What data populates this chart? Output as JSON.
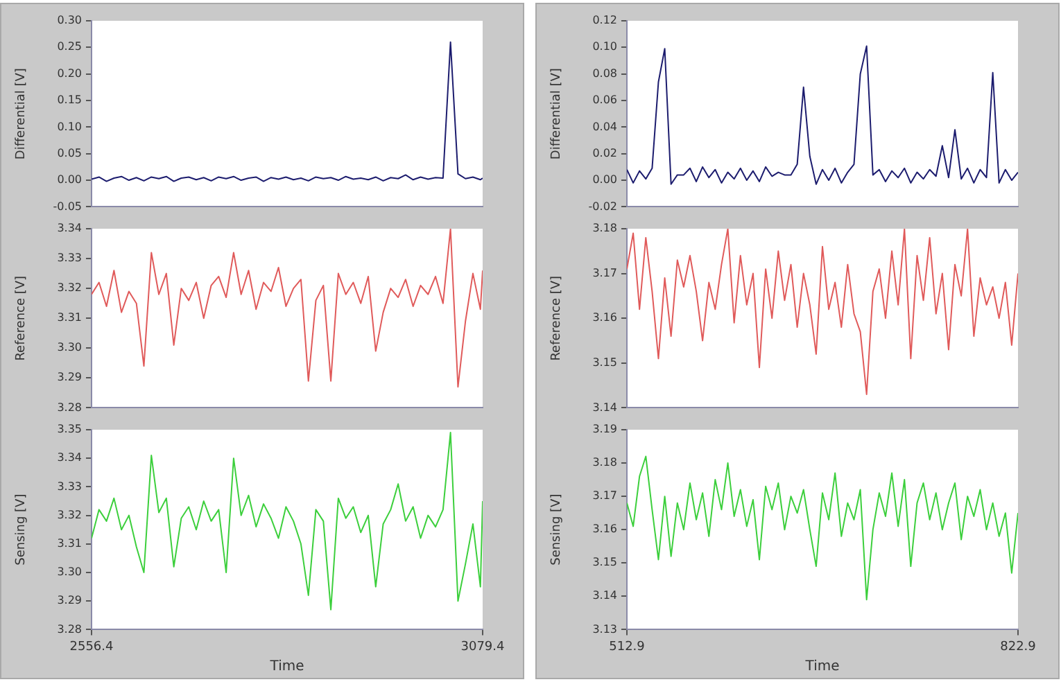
{
  "chart_data": [
    {
      "type": "line",
      "ylabel": "Differential [V]",
      "tick_labels": "y",
      "xlim": [
        2556.4,
        3079.4
      ],
      "ylim": [
        -0.05,
        0.3
      ],
      "yticks": [
        {
          "value": -0.05,
          "label": "-0.05"
        },
        {
          "value": 0,
          "label": "0.00"
        },
        {
          "value": 0.05,
          "label": "0.05"
        },
        {
          "value": 0.1,
          "label": "0.10"
        },
        {
          "value": 0.15,
          "label": "0.15"
        },
        {
          "value": 0.2,
          "label": "0.20"
        },
        {
          "value": 0.25,
          "label": "0.25"
        },
        {
          "value": 0.3,
          "label": "0.30"
        }
      ],
      "x": [
        2556.4,
        2566.4,
        2576.4,
        2586.4,
        2596.4,
        2606.4,
        2616.4,
        2626.4,
        2636.4,
        2646.4,
        2656.4,
        2666.4,
        2676.4,
        2686.4,
        2696.4,
        2706.4,
        2716.4,
        2726.4,
        2736.4,
        2746.4,
        2756.4,
        2766.4,
        2776.4,
        2786.4,
        2796.4,
        2806.4,
        2816.4,
        2826.4,
        2836.4,
        2846.4,
        2856.4,
        2866.4,
        2876.4,
        2886.4,
        2896.4,
        2906.4,
        2916.4,
        2926.4,
        2936.4,
        2946.4,
        2956.4,
        2966.4,
        2976.4,
        2986.4,
        2996.4,
        3006.4,
        3016.4,
        3026.4,
        3036.4,
        3046.4,
        3056.4,
        3066.4,
        3076.4,
        3079.4
      ],
      "series": [
        {
          "color": "#1c1c6e",
          "values": [
            0.002,
            0.006,
            -0.002,
            0.004,
            0.007,
            0.0,
            0.005,
            -0.001,
            0.006,
            0.003,
            0.007,
            -0.002,
            0.004,
            0.006,
            0.001,
            0.005,
            -0.001,
            0.006,
            0.003,
            0.007,
            0.0,
            0.004,
            0.006,
            -0.002,
            0.005,
            0.002,
            0.006,
            0.001,
            0.004,
            -0.001,
            0.006,
            0.003,
            0.005,
            0.0,
            0.007,
            0.002,
            0.004,
            0.001,
            0.006,
            -0.001,
            0.005,
            0.003,
            0.01,
            0.001,
            0.006,
            0.002,
            0.005,
            0.004,
            0.26,
            0.012,
            0.003,
            0.006,
            0.001,
            0.004
          ]
        }
      ]
    },
    {
      "type": "line",
      "ylabel": "Reference [V]",
      "tick_labels": "y",
      "xlim": [
        2556.4,
        3079.4
      ],
      "ylim": [
        3.28,
        3.34
      ],
      "yticks": [
        {
          "value": 3.28,
          "label": "3.28"
        },
        {
          "value": 3.29,
          "label": "3.29"
        },
        {
          "value": 3.3,
          "label": "3.30"
        },
        {
          "value": 3.31,
          "label": "3.31"
        },
        {
          "value": 3.32,
          "label": "3.32"
        },
        {
          "value": 3.33,
          "label": "3.33"
        },
        {
          "value": 3.34,
          "label": "3.34"
        }
      ],
      "x": [
        2556.4,
        2566.4,
        2576.4,
        2586.4,
        2596.4,
        2606.4,
        2616.4,
        2626.4,
        2636.4,
        2646.4,
        2656.4,
        2666.4,
        2676.4,
        2686.4,
        2696.4,
        2706.4,
        2716.4,
        2726.4,
        2736.4,
        2746.4,
        2756.4,
        2766.4,
        2776.4,
        2786.4,
        2796.4,
        2806.4,
        2816.4,
        2826.4,
        2836.4,
        2846.4,
        2856.4,
        2866.4,
        2876.4,
        2886.4,
        2896.4,
        2906.4,
        2916.4,
        2926.4,
        2936.4,
        2946.4,
        2956.4,
        2966.4,
        2976.4,
        2986.4,
        2996.4,
        3006.4,
        3016.4,
        3026.4,
        3036.4,
        3046.4,
        3056.4,
        3066.4,
        3076.4,
        3079.4
      ],
      "series": [
        {
          "color": "#e05a5a",
          "values": [
            3.318,
            3.322,
            3.314,
            3.326,
            3.312,
            3.319,
            3.315,
            3.294,
            3.332,
            3.318,
            3.325,
            3.301,
            3.32,
            3.316,
            3.322,
            3.31,
            3.321,
            3.324,
            3.317,
            3.332,
            3.318,
            3.326,
            3.313,
            3.322,
            3.319,
            3.327,
            3.314,
            3.32,
            3.323,
            3.289,
            3.316,
            3.321,
            3.289,
            3.325,
            3.318,
            3.322,
            3.315,
            3.324,
            3.299,
            3.312,
            3.32,
            3.317,
            3.323,
            3.314,
            3.321,
            3.318,
            3.324,
            3.315,
            3.34,
            3.287,
            3.309,
            3.325,
            3.313,
            3.326
          ]
        }
      ]
    },
    {
      "type": "line",
      "ylabel": "Sensing [V]",
      "xlabel": "Time",
      "xlim": [
        2556.4,
        3079.4
      ],
      "xticks": [
        2556.4,
        3079.4
      ],
      "ylim": [
        3.28,
        3.35
      ],
      "yticks": [
        {
          "value": 3.28,
          "label": "3.28"
        },
        {
          "value": 3.29,
          "label": "3.29"
        },
        {
          "value": 3.3,
          "label": "3.30"
        },
        {
          "value": 3.31,
          "label": "3.31"
        },
        {
          "value": 3.32,
          "label": "3.32"
        },
        {
          "value": 3.33,
          "label": "3.33"
        },
        {
          "value": 3.34,
          "label": "3.34"
        },
        {
          "value": 3.35,
          "label": "3.35"
        }
      ],
      "x": [
        2556.4,
        2566.4,
        2576.4,
        2586.4,
        2596.4,
        2606.4,
        2616.4,
        2626.4,
        2636.4,
        2646.4,
        2656.4,
        2666.4,
        2676.4,
        2686.4,
        2696.4,
        2706.4,
        2716.4,
        2726.4,
        2736.4,
        2746.4,
        2756.4,
        2766.4,
        2776.4,
        2786.4,
        2796.4,
        2806.4,
        2816.4,
        2826.4,
        2836.4,
        2846.4,
        2856.4,
        2866.4,
        2876.4,
        2886.4,
        2896.4,
        2906.4,
        2916.4,
        2926.4,
        2936.4,
        2946.4,
        2956.4,
        2966.4,
        2976.4,
        2986.4,
        2996.4,
        3006.4,
        3016.4,
        3026.4,
        3036.4,
        3046.4,
        3056.4,
        3066.4,
        3076.4,
        3079.4
      ],
      "series": [
        {
          "color": "#3ccf3c",
          "values": [
            3.312,
            3.322,
            3.318,
            3.326,
            3.315,
            3.32,
            3.309,
            3.3,
            3.341,
            3.321,
            3.326,
            3.302,
            3.319,
            3.323,
            3.315,
            3.325,
            3.318,
            3.322,
            3.3,
            3.34,
            3.32,
            3.327,
            3.316,
            3.324,
            3.319,
            3.312,
            3.323,
            3.318,
            3.31,
            3.292,
            3.322,
            3.318,
            3.287,
            3.326,
            3.319,
            3.323,
            3.314,
            3.32,
            3.295,
            3.317,
            3.322,
            3.331,
            3.318,
            3.323,
            3.312,
            3.32,
            3.316,
            3.322,
            3.349,
            3.29,
            3.303,
            3.317,
            3.295,
            3.325
          ]
        }
      ]
    },
    {
      "type": "line",
      "ylabel": "Differential [V]",
      "tick_labels": "y",
      "xlim": [
        512.9,
        822.9
      ],
      "ylim": [
        -0.02,
        0.12
      ],
      "yticks": [
        {
          "value": -0.02,
          "label": "-0.02"
        },
        {
          "value": 0,
          "label": "0.00"
        },
        {
          "value": 0.02,
          "label": "0.02"
        },
        {
          "value": 0.04,
          "label": "0.04"
        },
        {
          "value": 0.06,
          "label": "0.06"
        },
        {
          "value": 0.08,
          "label": "0.08"
        },
        {
          "value": 0.1,
          "label": "0.10"
        },
        {
          "value": 0.12,
          "label": "0.12"
        }
      ],
      "x": [
        512.9,
        517.9,
        522.9,
        527.9,
        532.9,
        537.9,
        542.9,
        547.9,
        552.9,
        557.9,
        562.9,
        567.9,
        572.9,
        577.9,
        582.9,
        587.9,
        592.9,
        597.9,
        602.9,
        607.9,
        612.9,
        617.9,
        622.9,
        627.9,
        632.9,
        637.9,
        642.9,
        647.9,
        652.9,
        657.9,
        662.9,
        667.9,
        672.9,
        677.9,
        682.9,
        687.9,
        692.9,
        697.9,
        702.9,
        707.9,
        712.9,
        717.9,
        722.9,
        727.9,
        732.9,
        737.9,
        742.9,
        747.9,
        752.9,
        757.9,
        762.9,
        767.9,
        772.9,
        777.9,
        782.9,
        787.9,
        792.9,
        797.9,
        802.9,
        807.9,
        812.9,
        817.9,
        822.9
      ],
      "series": [
        {
          "color": "#1c1c6e",
          "values": [
            0.008,
            -0.002,
            0.007,
            0.001,
            0.009,
            0.074,
            0.099,
            -0.003,
            0.004,
            0.004,
            0.009,
            -0.001,
            0.01,
            0.002,
            0.008,
            -0.002,
            0.006,
            0.001,
            0.009,
            0.0,
            0.007,
            -0.001,
            0.01,
            0.003,
            0.006,
            0.004,
            0.004,
            0.012,
            0.07,
            0.018,
            -0.003,
            0.008,
            0.0,
            0.009,
            -0.002,
            0.006,
            0.012,
            0.08,
            0.101,
            0.004,
            0.008,
            -0.001,
            0.007,
            0.002,
            0.009,
            -0.002,
            0.006,
            0.001,
            0.008,
            0.003,
            0.026,
            0.002,
            0.038,
            0.001,
            0.009,
            -0.002,
            0.008,
            0.002,
            0.081,
            -0.002,
            0.008,
            0.0,
            0.006
          ]
        }
      ]
    },
    {
      "type": "line",
      "ylabel": "Reference [V]",
      "tick_labels": "y",
      "xlim": [
        512.9,
        822.9
      ],
      "ylim": [
        3.14,
        3.18
      ],
      "yticks": [
        {
          "value": 3.14,
          "label": "3.14"
        },
        {
          "value": 3.15,
          "label": "3.15"
        },
        {
          "value": 3.16,
          "label": "3.16"
        },
        {
          "value": 3.17,
          "label": "3.17"
        },
        {
          "value": 3.18,
          "label": "3.18"
        }
      ],
      "x": [
        512.9,
        517.9,
        522.9,
        527.9,
        532.9,
        537.9,
        542.9,
        547.9,
        552.9,
        557.9,
        562.9,
        567.9,
        572.9,
        577.9,
        582.9,
        587.9,
        592.9,
        597.9,
        602.9,
        607.9,
        612.9,
        617.9,
        622.9,
        627.9,
        632.9,
        637.9,
        642.9,
        647.9,
        652.9,
        657.9,
        662.9,
        667.9,
        672.9,
        677.9,
        682.9,
        687.9,
        692.9,
        697.9,
        702.9,
        707.9,
        712.9,
        717.9,
        722.9,
        727.9,
        732.9,
        737.9,
        742.9,
        747.9,
        752.9,
        757.9,
        762.9,
        767.9,
        772.9,
        777.9,
        782.9,
        787.9,
        792.9,
        797.9,
        802.9,
        807.9,
        812.9,
        817.9,
        822.9
      ],
      "series": [
        {
          "color": "#e05a5a",
          "values": [
            3.171,
            3.179,
            3.162,
            3.178,
            3.166,
            3.151,
            3.169,
            3.156,
            3.173,
            3.167,
            3.174,
            3.166,
            3.155,
            3.168,
            3.162,
            3.172,
            3.18,
            3.159,
            3.174,
            3.163,
            3.17,
            3.149,
            3.171,
            3.16,
            3.175,
            3.164,
            3.172,
            3.158,
            3.17,
            3.163,
            3.152,
            3.176,
            3.162,
            3.168,
            3.158,
            3.172,
            3.161,
            3.157,
            3.143,
            3.166,
            3.171,
            3.16,
            3.175,
            3.163,
            3.18,
            3.151,
            3.174,
            3.164,
            3.178,
            3.161,
            3.17,
            3.153,
            3.172,
            3.165,
            3.18,
            3.156,
            3.169,
            3.163,
            3.167,
            3.16,
            3.168,
            3.154,
            3.17
          ]
        }
      ]
    },
    {
      "type": "line",
      "ylabel": "Sensing [V]",
      "xlabel": "Time",
      "xlim": [
        512.9,
        822.9
      ],
      "xticks": [
        512.9,
        822.9
      ],
      "ylim": [
        3.13,
        3.19
      ],
      "yticks": [
        {
          "value": 3.13,
          "label": "3.13"
        },
        {
          "value": 3.14,
          "label": "3.14"
        },
        {
          "value": 3.15,
          "label": "3.15"
        },
        {
          "value": 3.16,
          "label": "3.16"
        },
        {
          "value": 3.17,
          "label": "3.17"
        },
        {
          "value": 3.18,
          "label": "3.18"
        },
        {
          "value": 3.19,
          "label": "3.19"
        }
      ],
      "x": [
        512.9,
        517.9,
        522.9,
        527.9,
        532.9,
        537.9,
        542.9,
        547.9,
        552.9,
        557.9,
        562.9,
        567.9,
        572.9,
        577.9,
        582.9,
        587.9,
        592.9,
        597.9,
        602.9,
        607.9,
        612.9,
        617.9,
        622.9,
        627.9,
        632.9,
        637.9,
        642.9,
        647.9,
        652.9,
        657.9,
        662.9,
        667.9,
        672.9,
        677.9,
        682.9,
        687.9,
        692.9,
        697.9,
        702.9,
        707.9,
        712.9,
        717.9,
        722.9,
        727.9,
        732.9,
        737.9,
        742.9,
        747.9,
        752.9,
        757.9,
        762.9,
        767.9,
        772.9,
        777.9,
        782.9,
        787.9,
        792.9,
        797.9,
        802.9,
        807.9,
        812.9,
        817.9,
        822.9
      ],
      "series": [
        {
          "color": "#3ccf3c",
          "values": [
            3.168,
            3.161,
            3.176,
            3.182,
            3.166,
            3.151,
            3.17,
            3.152,
            3.168,
            3.16,
            3.174,
            3.163,
            3.171,
            3.158,
            3.175,
            3.166,
            3.18,
            3.164,
            3.172,
            3.161,
            3.169,
            3.151,
            3.173,
            3.166,
            3.174,
            3.16,
            3.17,
            3.165,
            3.172,
            3.16,
            3.149,
            3.171,
            3.163,
            3.177,
            3.158,
            3.168,
            3.163,
            3.172,
            3.139,
            3.16,
            3.171,
            3.164,
            3.177,
            3.161,
            3.175,
            3.149,
            3.168,
            3.174,
            3.163,
            3.171,
            3.16,
            3.168,
            3.174,
            3.157,
            3.17,
            3.164,
            3.172,
            3.16,
            3.168,
            3.158,
            3.165,
            3.147,
            3.165
          ]
        }
      ]
    }
  ]
}
